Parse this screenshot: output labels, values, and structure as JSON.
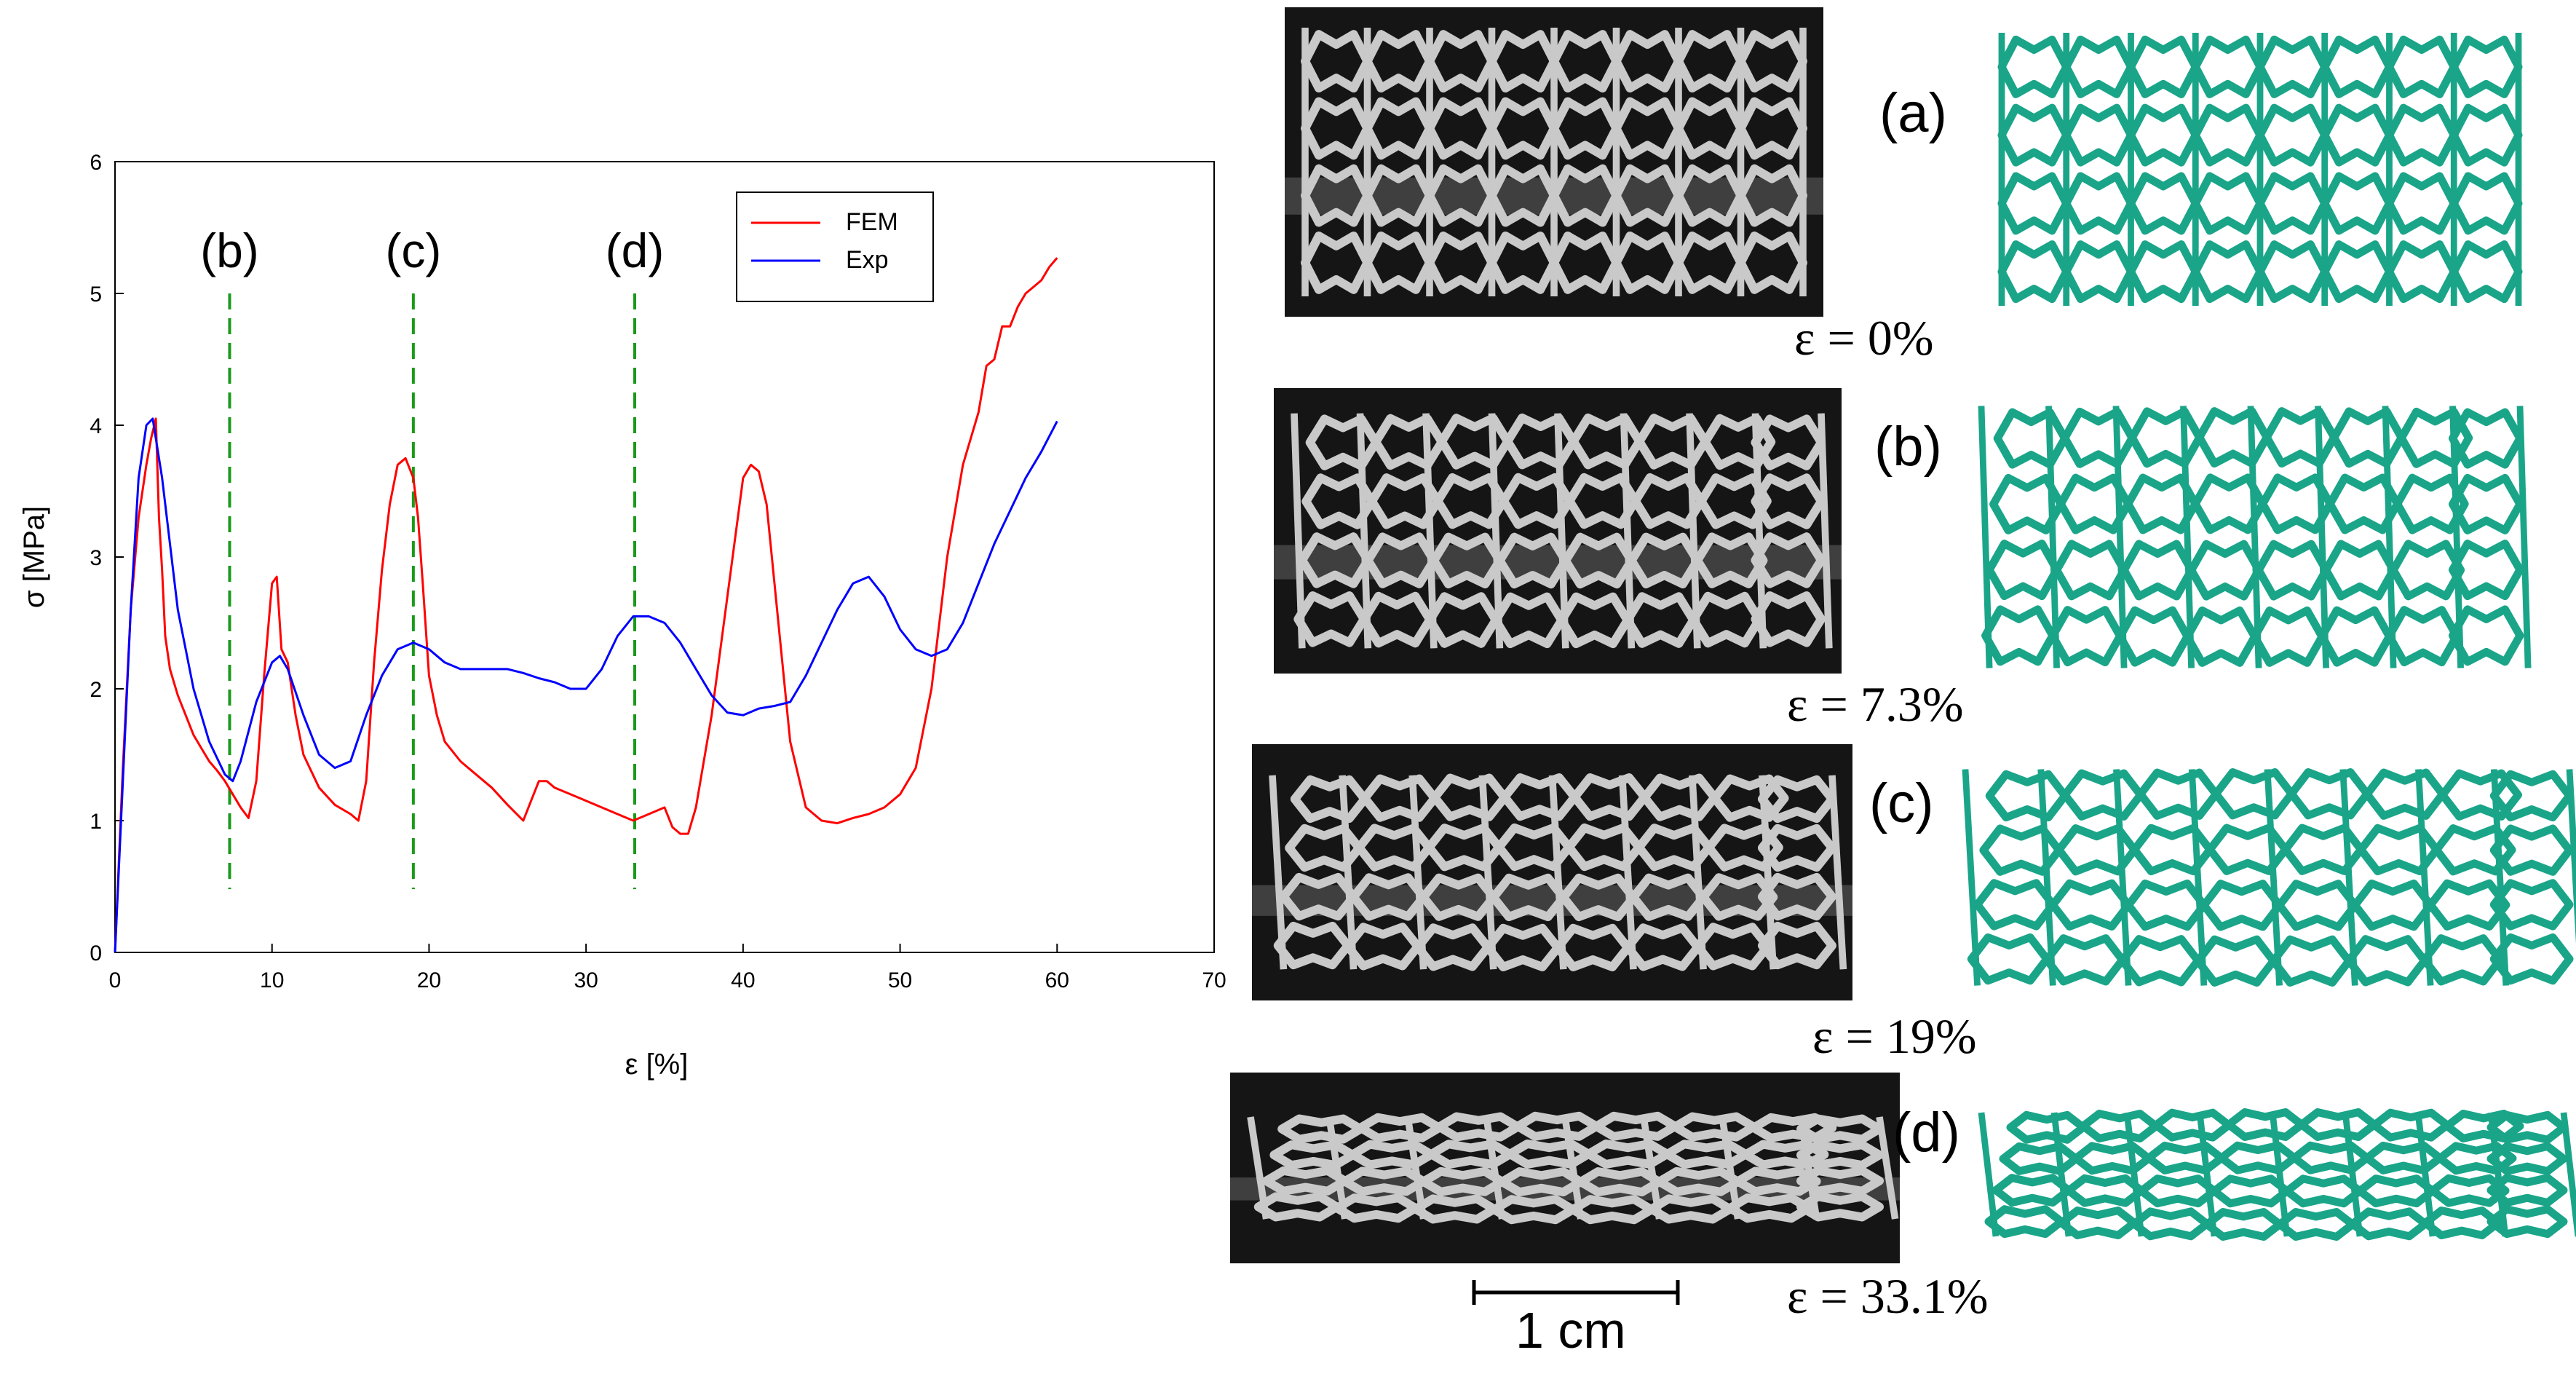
{
  "chart_data": {
    "type": "line",
    "xlabel": "ε [%]",
    "ylabel": "σ [MPa]",
    "xlim": [
      0,
      70
    ],
    "ylim": [
      0,
      6
    ],
    "xticks": [
      "0",
      "10",
      "20",
      "30",
      "40",
      "50",
      "60",
      "70"
    ],
    "yticks": [
      "0",
      "1",
      "2",
      "3",
      "4",
      "5",
      "6"
    ],
    "grid": false,
    "legend": {
      "placement": "top-right"
    },
    "series": [
      {
        "name": "FEM",
        "color": "#ff0000",
        "x": [
          0,
          0.5,
          1.0,
          1.5,
          2.0,
          2.3,
          2.6,
          2.8,
          3.0,
          3.2,
          3.5,
          4.0,
          4.5,
          5.0,
          5.5,
          6.0,
          6.5,
          7.0,
          7.5,
          8.0,
          8.5,
          9.0,
          9.5,
          10.0,
          10.3,
          10.6,
          11.0,
          11.5,
          12.0,
          13.0,
          14.0,
          15.0,
          15.5,
          16.0,
          16.5,
          17.0,
          17.5,
          18.0,
          18.5,
          19.0,
          19.3,
          19.6,
          20.0,
          20.5,
          21.0,
          22.0,
          23.0,
          24.0,
          25.0,
          26.0,
          26.5,
          27.0,
          27.5,
          28.0,
          29.0,
          30.0,
          31.0,
          32.0,
          33.0,
          34.0,
          35.0,
          35.5,
          36.0,
          36.5,
          37.0,
          38.0,
          39.0,
          40.0,
          40.5,
          41.0,
          41.5,
          42.0,
          43.0,
          44.0,
          45.0,
          46.0,
          47.0,
          48.0,
          49.0,
          50.0,
          51.0,
          52.0,
          53.0,
          54.0,
          55.0,
          55.5,
          56.0,
          56.5,
          57.0,
          57.5,
          58.0,
          58.5,
          59.0,
          59.5,
          60.0
        ],
        "values": [
          0,
          1.4,
          2.6,
          3.3,
          3.7,
          3.9,
          4.05,
          3.3,
          2.9,
          2.4,
          2.15,
          1.95,
          1.8,
          1.65,
          1.55,
          1.45,
          1.38,
          1.3,
          1.2,
          1.1,
          1.02,
          1.3,
          2.1,
          2.8,
          2.85,
          2.3,
          2.2,
          1.8,
          1.5,
          1.25,
          1.12,
          1.05,
          1.0,
          1.3,
          2.2,
          2.9,
          3.4,
          3.7,
          3.75,
          3.6,
          3.3,
          2.8,
          2.1,
          1.8,
          1.6,
          1.45,
          1.35,
          1.25,
          1.12,
          1.0,
          1.15,
          1.3,
          1.3,
          1.25,
          1.2,
          1.15,
          1.1,
          1.05,
          1.0,
          1.05,
          1.1,
          0.95,
          0.9,
          0.9,
          1.1,
          1.8,
          2.7,
          3.6,
          3.7,
          3.65,
          3.4,
          2.8,
          1.6,
          1.1,
          1.0,
          0.98,
          1.02,
          1.05,
          1.1,
          1.2,
          1.4,
          2.0,
          3.0,
          3.7,
          4.1,
          4.45,
          4.5,
          4.75,
          4.75,
          4.9,
          5.0,
          5.05,
          5.1,
          5.2,
          5.27
        ]
      },
      {
        "name": "Exp",
        "color": "#0000ff",
        "x": [
          0,
          0.5,
          1.0,
          1.5,
          2.0,
          2.4,
          3.0,
          3.5,
          4.0,
          5.0,
          6.0,
          7.0,
          7.5,
          8.0,
          9.0,
          10.0,
          10.5,
          11.0,
          12.0,
          13.0,
          14.0,
          15.0,
          16.0,
          17.0,
          18.0,
          19.0,
          20.0,
          21.0,
          22.0,
          23.0,
          24.0,
          25.0,
          26.0,
          27.0,
          28.0,
          29.0,
          30.0,
          31.0,
          32.0,
          33.0,
          34.0,
          35.0,
          36.0,
          37.0,
          38.0,
          39.0,
          40.0,
          41.0,
          42.0,
          43.0,
          44.0,
          45.0,
          46.0,
          47.0,
          48.0,
          49.0,
          50.0,
          51.0,
          52.0,
          53.0,
          54.0,
          55.0,
          56.0,
          57.0,
          58.0,
          59.0,
          60.0
        ],
        "values": [
          0,
          1.3,
          2.6,
          3.6,
          4.0,
          4.05,
          3.6,
          3.1,
          2.6,
          2.0,
          1.6,
          1.35,
          1.3,
          1.45,
          1.9,
          2.2,
          2.25,
          2.15,
          1.8,
          1.5,
          1.4,
          1.45,
          1.8,
          2.1,
          2.3,
          2.35,
          2.3,
          2.2,
          2.15,
          2.15,
          2.15,
          2.15,
          2.12,
          2.08,
          2.05,
          2.0,
          2.0,
          2.15,
          2.4,
          2.55,
          2.55,
          2.5,
          2.35,
          2.15,
          1.95,
          1.82,
          1.8,
          1.85,
          1.87,
          1.9,
          2.1,
          2.35,
          2.6,
          2.8,
          2.85,
          2.7,
          2.45,
          2.3,
          2.25,
          2.3,
          2.5,
          2.8,
          3.1,
          3.35,
          3.6,
          3.8,
          4.03
        ]
      }
    ],
    "markers": [
      {
        "label": "(b)",
        "x": 7.3
      },
      {
        "label": "(c)",
        "x": 19
      },
      {
        "label": "(d)",
        "x": 33.1
      }
    ]
  },
  "panels": [
    {
      "id": "a",
      "label": "(a)",
      "strain": "ε = 0%",
      "shear": 0,
      "curve": 0,
      "shrink": 1.0
    },
    {
      "id": "b",
      "label": "(b)",
      "strain": "ε = 7.3%",
      "shear": 0.06,
      "curve": 0.05,
      "shrink": 0.96
    },
    {
      "id": "c",
      "label": "(c)",
      "strain": "ε = 19%",
      "shear": 0.08,
      "curve": 0.1,
      "shrink": 0.9
    },
    {
      "id": "d",
      "label": "(d)",
      "strain": "ε = 33.1%",
      "shear": 0.1,
      "curve": 0.18,
      "shrink": 0.68
    }
  ],
  "scale_bar": {
    "label": "1 cm"
  },
  "colors": {
    "lattice_model": "#1aa589",
    "photo_background": "#151515",
    "photo_strut": "#c9c9c9",
    "marker_line": "#1a9a1a"
  }
}
